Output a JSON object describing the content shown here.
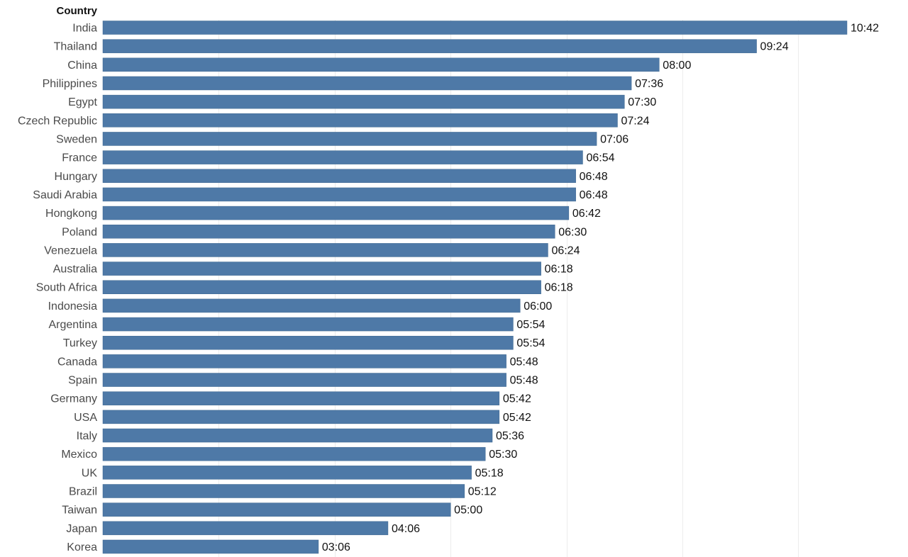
{
  "colors": {
    "bar": "#4e79a7",
    "bar_border": "#3f6890",
    "grid": "#ececec",
    "background": "#ffffff"
  },
  "chart_data": {
    "type": "bar",
    "orientation": "horizontal",
    "title": "",
    "ylabel": "Country",
    "xlabel": "",
    "xlim_minutes": [
      0,
      750
    ],
    "grid_step_minutes": 100,
    "grid": true,
    "categories": [
      "India",
      "Thailand",
      "China",
      "Philippines",
      "Egypt",
      "Czech Republic",
      "Sweden",
      "France",
      "Hungary",
      "Saudi Arabia",
      "Hongkong",
      "Poland",
      "Venezuela",
      "Australia",
      "South Africa",
      "Indonesia",
      "Argentina",
      "Turkey",
      "Canada",
      "Spain",
      "Germany",
      "USA",
      "Italy",
      "Mexico",
      "UK",
      "Brazil",
      "Taiwan",
      "Japan",
      "Korea"
    ],
    "values_minutes": [
      642,
      564,
      480,
      456,
      450,
      444,
      426,
      414,
      408,
      408,
      402,
      390,
      384,
      378,
      378,
      360,
      354,
      354,
      348,
      348,
      342,
      342,
      336,
      330,
      318,
      312,
      300,
      246,
      186
    ],
    "value_labels": [
      "10:42",
      "09:24",
      "08:00",
      "07:36",
      "07:30",
      "07:24",
      "07:06",
      "06:54",
      "06:48",
      "06:48",
      "06:42",
      "06:30",
      "06:24",
      "06:18",
      "06:18",
      "06:00",
      "05:54",
      "05:54",
      "05:48",
      "05:48",
      "05:42",
      "05:42",
      "05:36",
      "05:30",
      "05:18",
      "05:12",
      "05:00",
      "04:06",
      "03:06"
    ]
  }
}
